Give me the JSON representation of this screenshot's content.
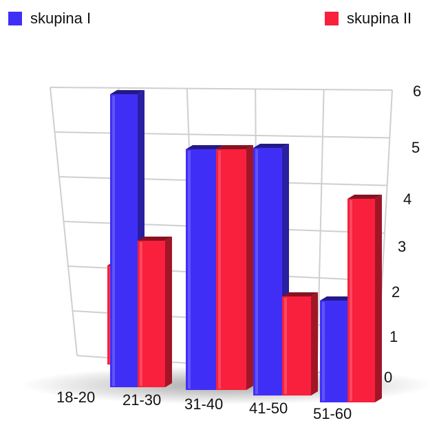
{
  "chart_data": {
    "type": "bar",
    "categories": [
      "18-20",
      "21-30",
      "31-40",
      "41-50",
      "51-60"
    ],
    "series": [
      {
        "name": "skupina I",
        "color": "#3f2ff6",
        "values": [
          0,
          6,
          5,
          5,
          2
        ]
      },
      {
        "name": "skupina II",
        "color": "#f8203c",
        "values": [
          2,
          3,
          5,
          2,
          4
        ]
      }
    ],
    "yticks": [
      0,
      1,
      2,
      3,
      4,
      5,
      6
    ],
    "ylim": [
      0,
      6
    ],
    "grid": true,
    "legend_position": "top",
    "style": "3d-perspective"
  }
}
